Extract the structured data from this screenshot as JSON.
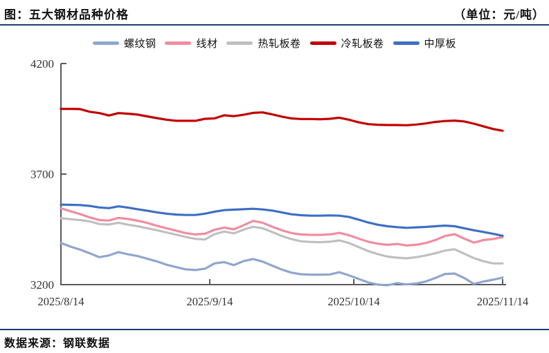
{
  "header": {
    "title": "图：五大钢材品种价格",
    "unit": "（单位：元/吨）"
  },
  "footer": {
    "source": "数据来源：钢联数据"
  },
  "colors": {
    "rule": "#1B3A6B",
    "axis": "#595959",
    "tick_label": "#333333"
  },
  "chart_data": {
    "type": "line",
    "title": "五大钢材品种价格",
    "unit": "元/吨",
    "grid": false,
    "legend_position": "top",
    "ylim": [
      3200,
      4200
    ],
    "yticks": [
      4200,
      3700,
      3200
    ],
    "x_day_range": [
      0,
      92
    ],
    "xticks": [
      {
        "day": 0,
        "label": "2025/8/14"
      },
      {
        "day": 31,
        "label": "2025/9/14"
      },
      {
        "day": 61,
        "label": "2025/10/14"
      },
      {
        "day": 92,
        "label": "2025/11/14"
      }
    ],
    "days": [
      0,
      2,
      4,
      6,
      8,
      10,
      12,
      14,
      16,
      18,
      20,
      22,
      24,
      26,
      28,
      30,
      32,
      34,
      36,
      38,
      40,
      42,
      44,
      46,
      48,
      50,
      52,
      54,
      56,
      58,
      60,
      62,
      64,
      66,
      68,
      70,
      72,
      74,
      76,
      78,
      80,
      82,
      84,
      86,
      88,
      90,
      92
    ],
    "series": [
      {
        "name": "螺纹钢",
        "color": "#8FA6CD",
        "values": [
          3388,
          3372,
          3358,
          3342,
          3324,
          3332,
          3347,
          3337,
          3329,
          3317,
          3305,
          3290,
          3279,
          3269,
          3266,
          3272,
          3296,
          3302,
          3288,
          3306,
          3316,
          3304,
          3286,
          3268,
          3254,
          3247,
          3245,
          3245,
          3246,
          3256,
          3242,
          3226,
          3210,
          3200,
          3197,
          3207,
          3201,
          3205,
          3214,
          3230,
          3248,
          3250,
          3230,
          3203,
          3214,
          3222,
          3232
        ]
      },
      {
        "name": "线材",
        "color": "#F08CA0",
        "values": [
          3545,
          3532,
          3519,
          3504,
          3492,
          3490,
          3502,
          3497,
          3489,
          3479,
          3466,
          3455,
          3444,
          3433,
          3427,
          3430,
          3448,
          3458,
          3450,
          3468,
          3488,
          3480,
          3462,
          3446,
          3433,
          3427,
          3425,
          3425,
          3427,
          3434,
          3423,
          3408,
          3394,
          3385,
          3380,
          3384,
          3377,
          3380,
          3388,
          3402,
          3420,
          3428,
          3408,
          3390,
          3402,
          3406,
          3415
        ]
      },
      {
        "name": "热轧板卷",
        "color": "#BFBFBF",
        "values": [
          3500,
          3496,
          3492,
          3486,
          3474,
          3472,
          3480,
          3471,
          3464,
          3455,
          3446,
          3436,
          3426,
          3416,
          3407,
          3404,
          3428,
          3440,
          3432,
          3448,
          3462,
          3455,
          3438,
          3420,
          3406,
          3396,
          3393,
          3392,
          3394,
          3400,
          3388,
          3370,
          3352,
          3338,
          3327,
          3322,
          3319,
          3324,
          3332,
          3342,
          3354,
          3360,
          3340,
          3320,
          3306,
          3296,
          3296
        ]
      },
      {
        "name": "冷轧板卷",
        "color": "#C00000",
        "values": [
          3995,
          3995,
          3994,
          3982,
          3976,
          3965,
          3976,
          3973,
          3969,
          3961,
          3953,
          3946,
          3941,
          3941,
          3941,
          3950,
          3952,
          3966,
          3962,
          3968,
          3977,
          3979,
          3970,
          3960,
          3952,
          3949,
          3949,
          3948,
          3950,
          3955,
          3946,
          3934,
          3926,
          3923,
          3922,
          3922,
          3921,
          3924,
          3929,
          3936,
          3940,
          3942,
          3938,
          3928,
          3916,
          3904,
          3896
        ]
      },
      {
        "name": "中厚板",
        "color": "#3D6FC4",
        "values": [
          3562,
          3561,
          3560,
          3556,
          3549,
          3546,
          3554,
          3548,
          3541,
          3534,
          3527,
          3521,
          3517,
          3515,
          3515,
          3521,
          3530,
          3537,
          3539,
          3541,
          3543,
          3540,
          3535,
          3527,
          3518,
          3514,
          3512,
          3512,
          3513,
          3512,
          3506,
          3494,
          3481,
          3471,
          3464,
          3460,
          3457,
          3459,
          3461,
          3464,
          3467,
          3464,
          3455,
          3446,
          3438,
          3430,
          3421
        ]
      }
    ]
  }
}
